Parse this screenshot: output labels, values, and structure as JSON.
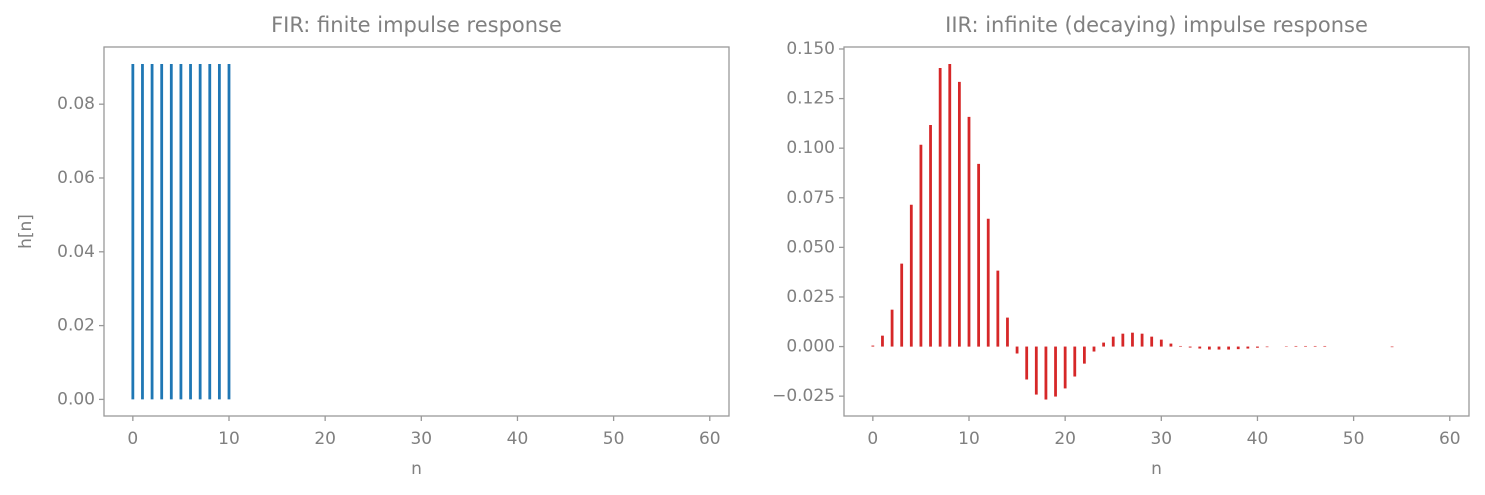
{
  "chart_data": [
    {
      "type": "stem",
      "title": "FIR: finite impulse response",
      "xlabel": "n",
      "ylabel": "h[n]",
      "color": "#1f77b4",
      "x": [
        0,
        1,
        2,
        3,
        4,
        5,
        6,
        7,
        8,
        9,
        10
      ],
      "values": [
        0.0909,
        0.0909,
        0.0909,
        0.0909,
        0.0909,
        0.0909,
        0.0909,
        0.0909,
        0.0909,
        0.0909,
        0.0909
      ],
      "xlim": [
        -3,
        62
      ],
      "xticks": [
        0,
        10,
        20,
        30,
        40,
        50,
        60
      ],
      "ylim": [
        -0.0045,
        0.0955
      ],
      "yticks": [
        {
          "value": 0,
          "label": "0.00"
        },
        0.02,
        0.04,
        0.06,
        0.08
      ]
    },
    {
      "type": "stem",
      "title": "IIR: infinite (decaying) impulse response",
      "xlabel": "n",
      "color": "#d62728",
      "x": [
        0,
        1,
        2,
        3,
        4,
        5,
        6,
        7,
        8,
        9,
        10,
        11,
        12,
        13,
        14,
        15,
        16,
        17,
        18,
        19,
        20,
        21,
        22,
        23,
        24,
        25,
        26,
        27,
        28,
        29,
        30,
        31,
        32,
        33,
        34,
        35,
        36,
        37,
        38,
        39,
        40,
        41,
        42,
        43,
        44,
        45,
        46,
        47,
        48,
        49,
        50,
        51,
        52,
        53,
        54,
        55,
        56,
        57,
        58,
        59,
        60
      ],
      "values": [
        0.0005,
        0.0055,
        0.0186,
        0.0418,
        0.0715,
        0.1017,
        0.1117,
        0.1404,
        0.1424,
        0.1334,
        0.1158,
        0.0921,
        0.0644,
        0.0383,
        0.0146,
        -0.0035,
        -0.0166,
        -0.0242,
        -0.0267,
        -0.0252,
        -0.0211,
        -0.0151,
        -0.0086,
        -0.0025,
        0.002,
        0.005,
        0.0065,
        0.007,
        0.0065,
        0.005,
        0.0035,
        0.0015,
        0.0003,
        -0.0005,
        -0.001,
        -0.0015,
        -0.0015,
        -0.0015,
        -0.0013,
        -0.001,
        -0.0006,
        -0.0003,
        0,
        0.0002,
        0.0003,
        0.0003,
        0.0003,
        0.0003,
        0,
        0,
        0,
        0,
        0,
        0,
        -0.0003,
        0,
        0,
        0,
        0,
        0,
        0
      ],
      "xlim": [
        -3,
        62
      ],
      "xticks": [
        0,
        10,
        20,
        30,
        40,
        50,
        60
      ],
      "ylim": [
        -0.035,
        0.151
      ],
      "yticks": [
        {
          "value": -0.025,
          "label": "−0.025"
        },
        {
          "value": 0,
          "label": "0.000"
        },
        0.025,
        {
          "value": 0.05,
          "label": "0.050"
        },
        0.075,
        {
          "value": 0.1,
          "label": "0.100"
        },
        0.125,
        {
          "value": 0.15,
          "label": "0.150"
        }
      ]
    }
  ]
}
